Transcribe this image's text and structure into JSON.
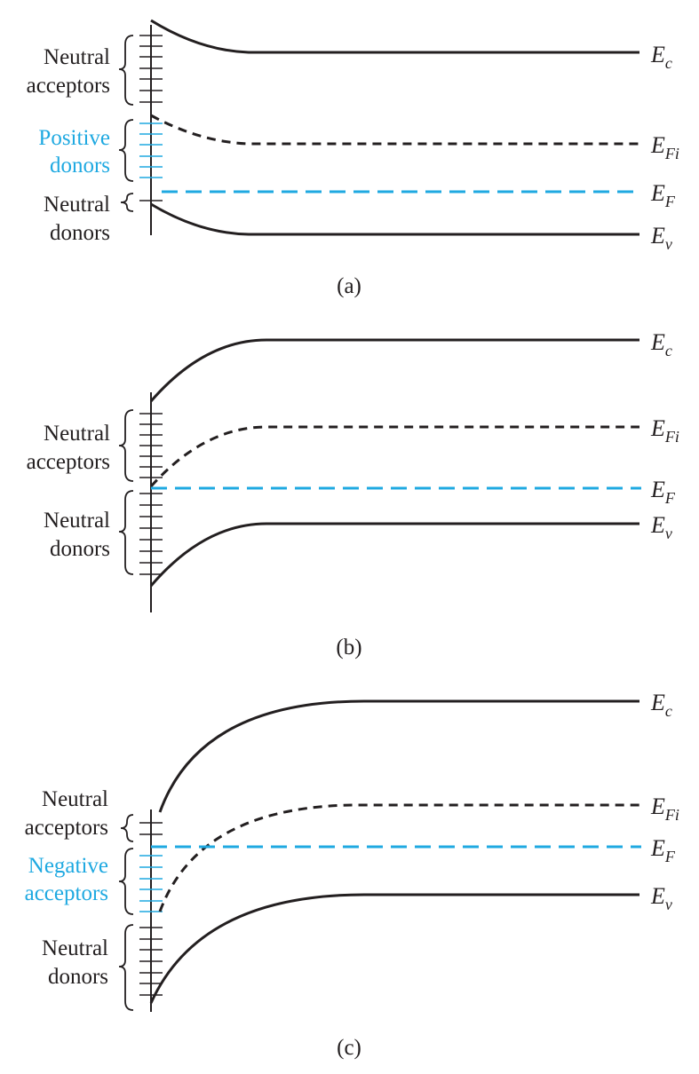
{
  "symbols": {
    "ec": {
      "main": "E",
      "sub": "c"
    },
    "efi": {
      "main": "E",
      "sub": "Fi"
    },
    "ef": {
      "main": "E",
      "sub": "F"
    },
    "ev": {
      "main": "E",
      "sub": "v"
    }
  },
  "colors": {
    "band": "#231f20",
    "fermi": "#1fa9e1",
    "highlight_text": "#1fa9e1"
  },
  "panels": [
    {
      "caption": "(a)",
      "labels": [
        {
          "line1": "Neutral",
          "line2": "acceptors",
          "highlight": false
        },
        {
          "line1": "Positive",
          "line2": "donors",
          "highlight": true
        },
        {
          "line1": "Neutral",
          "line2": "donors",
          "highlight": false
        }
      ]
    },
    {
      "caption": "(b)",
      "labels": [
        {
          "line1": "Neutral",
          "line2": "acceptors",
          "highlight": false
        },
        {
          "line1": "Neutral",
          "line2": "donors",
          "highlight": false
        }
      ]
    },
    {
      "caption": "(c)",
      "labels": [
        {
          "line1": "Neutral",
          "line2": "acceptors",
          "highlight": false
        },
        {
          "line1": "Negative",
          "line2": "acceptors",
          "highlight": true
        },
        {
          "line1": "Neutral",
          "line2": "donors",
          "highlight": false
        }
      ]
    }
  ]
}
